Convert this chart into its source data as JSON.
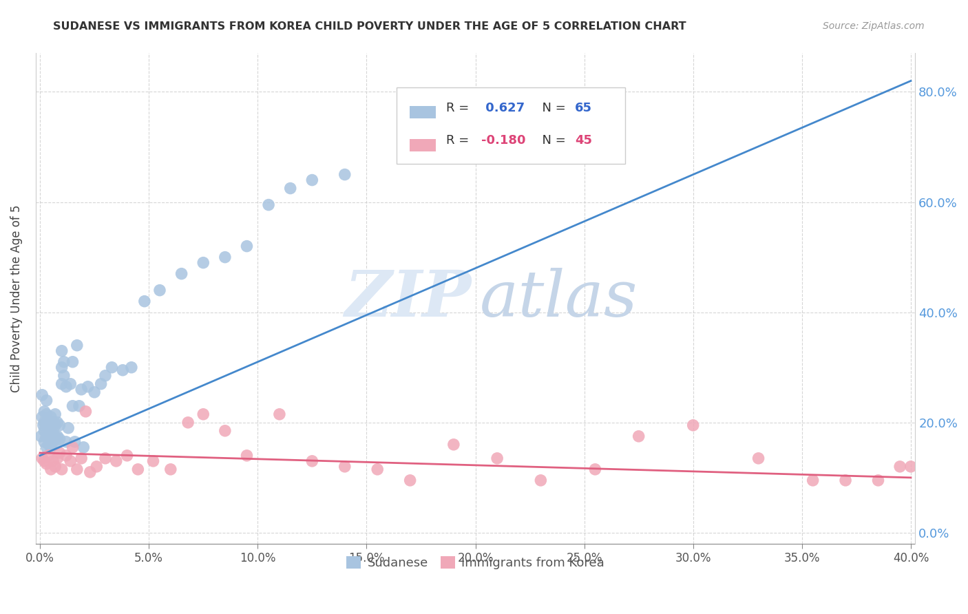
{
  "title": "SUDANESE VS IMMIGRANTS FROM KOREA CHILD POVERTY UNDER THE AGE OF 5 CORRELATION CHART",
  "source": "Source: ZipAtlas.com",
  "ylabel": "Child Poverty Under the Age of 5",
  "xlim": [
    -0.002,
    0.402
  ],
  "ylim": [
    -0.02,
    0.87
  ],
  "x_ticks": [
    0.0,
    0.05,
    0.1,
    0.15,
    0.2,
    0.25,
    0.3,
    0.35,
    0.4
  ],
  "y_ticks": [
    0.0,
    0.2,
    0.4,
    0.6,
    0.8
  ],
  "sudanese_color": "#a8c4e0",
  "korea_color": "#f0a8b8",
  "trend_sudanese_color": "#4488cc",
  "trend_korea_color": "#e06080",
  "background_color": "#ffffff",
  "grid_color": "#cccccc",
  "watermark_zip": "ZIP",
  "watermark_atlas": "atlas",
  "legend_r_sudanese": "0.627",
  "legend_n_sudanese": "65",
  "legend_r_korea": "-0.180",
  "legend_n_korea": "45",
  "sudanese_x": [
    0.0005,
    0.001,
    0.001,
    0.0015,
    0.002,
    0.002,
    0.002,
    0.002,
    0.003,
    0.003,
    0.003,
    0.003,
    0.003,
    0.004,
    0.004,
    0.004,
    0.005,
    0.005,
    0.005,
    0.005,
    0.006,
    0.006,
    0.006,
    0.007,
    0.007,
    0.007,
    0.007,
    0.008,
    0.008,
    0.009,
    0.009,
    0.01,
    0.01,
    0.01,
    0.011,
    0.011,
    0.012,
    0.012,
    0.013,
    0.014,
    0.015,
    0.015,
    0.016,
    0.017,
    0.018,
    0.019,
    0.02,
    0.022,
    0.025,
    0.028,
    0.03,
    0.033,
    0.038,
    0.042,
    0.048,
    0.055,
    0.065,
    0.075,
    0.085,
    0.095,
    0.105,
    0.115,
    0.125,
    0.14,
    0.215
  ],
  "sudanese_y": [
    0.175,
    0.21,
    0.25,
    0.195,
    0.165,
    0.185,
    0.2,
    0.22,
    0.155,
    0.175,
    0.195,
    0.215,
    0.24,
    0.16,
    0.18,
    0.2,
    0.155,
    0.17,
    0.19,
    0.21,
    0.165,
    0.18,
    0.2,
    0.16,
    0.175,
    0.195,
    0.215,
    0.175,
    0.2,
    0.17,
    0.195,
    0.27,
    0.3,
    0.33,
    0.285,
    0.31,
    0.165,
    0.265,
    0.19,
    0.27,
    0.23,
    0.31,
    0.165,
    0.34,
    0.23,
    0.26,
    0.155,
    0.265,
    0.255,
    0.27,
    0.285,
    0.3,
    0.295,
    0.3,
    0.42,
    0.44,
    0.47,
    0.49,
    0.5,
    0.52,
    0.595,
    0.625,
    0.64,
    0.65,
    0.76
  ],
  "korea_x": [
    0.001,
    0.002,
    0.003,
    0.004,
    0.005,
    0.006,
    0.007,
    0.008,
    0.009,
    0.01,
    0.012,
    0.014,
    0.015,
    0.017,
    0.019,
    0.021,
    0.023,
    0.026,
    0.03,
    0.035,
    0.04,
    0.045,
    0.052,
    0.06,
    0.068,
    0.075,
    0.085,
    0.095,
    0.11,
    0.125,
    0.14,
    0.155,
    0.17,
    0.19,
    0.21,
    0.23,
    0.255,
    0.275,
    0.3,
    0.33,
    0.355,
    0.37,
    0.385,
    0.395,
    0.4
  ],
  "korea_y": [
    0.135,
    0.13,
    0.125,
    0.14,
    0.115,
    0.13,
    0.12,
    0.135,
    0.145,
    0.115,
    0.14,
    0.13,
    0.155,
    0.115,
    0.135,
    0.22,
    0.11,
    0.12,
    0.135,
    0.13,
    0.14,
    0.115,
    0.13,
    0.115,
    0.2,
    0.215,
    0.185,
    0.14,
    0.215,
    0.13,
    0.12,
    0.115,
    0.095,
    0.16,
    0.135,
    0.095,
    0.115,
    0.175,
    0.195,
    0.135,
    0.095,
    0.095,
    0.095,
    0.12,
    0.12
  ],
  "trend_s_x0": 0.0,
  "trend_s_y0": 0.14,
  "trend_s_x1": 0.4,
  "trend_s_y1": 0.82,
  "trend_k_x0": 0.0,
  "trend_k_y0": 0.145,
  "trend_k_x1": 0.4,
  "trend_k_y1": 0.1
}
